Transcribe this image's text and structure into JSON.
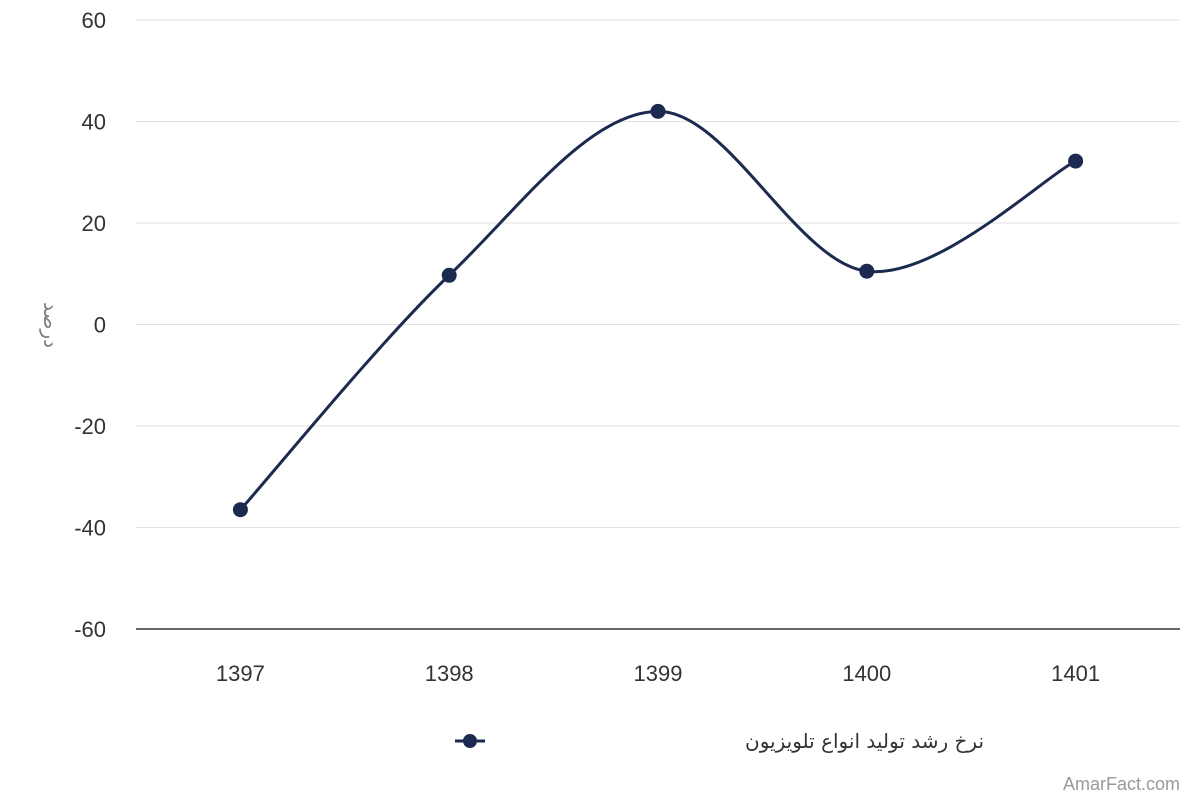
{
  "chart_data": {
    "type": "line",
    "title": "",
    "xlabel": "",
    "ylabel": "درصد",
    "categories": [
      "1397",
      "1398",
      "1399",
      "1400",
      "1401"
    ],
    "series": [
      {
        "name": "نرخ رشد تولید انواع تلویزیون",
        "values": [
          -36.5,
          9.7,
          42,
          10.5,
          32.2
        ],
        "color": "#1b2a4e"
      }
    ],
    "ylim": [
      -60,
      60
    ],
    "yticks": [
      60,
      40,
      20,
      0,
      -20,
      -40,
      -60
    ],
    "grid": true,
    "smooth": true,
    "legend_position": "bottom-center"
  },
  "credit": "AmarFact.com"
}
